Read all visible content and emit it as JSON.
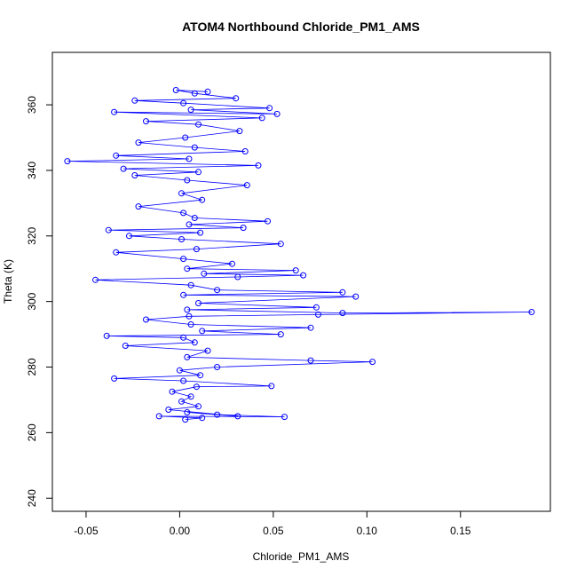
{
  "chart_data": {
    "type": "line",
    "title": "ATOM4 Northbound Chloride_PM1_AMS",
    "xlabel": "Chloride_PM1_AMS",
    "ylabel": "Theta (K)",
    "xlim": [
      -0.068,
      0.198
    ],
    "ylim": [
      236,
      376
    ],
    "x_ticks": [
      -0.05,
      0.0,
      0.05,
      0.1,
      0.15
    ],
    "x_tick_labels": [
      "-0.05",
      "0.00",
      "0.05",
      "0.10",
      "0.15"
    ],
    "y_ticks": [
      240,
      260,
      280,
      300,
      320,
      340,
      360
    ],
    "y_tick_labels": [
      "240",
      "260",
      "280",
      "300",
      "320",
      "340",
      "360"
    ],
    "grid": false,
    "marker": "open-circle",
    "color": "#0000ff",
    "series": [
      {
        "points": [
          [
            0.003,
            264.0
          ],
          [
            0.012,
            264.5
          ],
          [
            -0.011,
            265.0
          ],
          [
            0.056,
            264.8
          ],
          [
            0.02,
            265.5
          ],
          [
            0.004,
            266.2
          ],
          [
            0.031,
            265.0
          ],
          [
            -0.006,
            267.0
          ],
          [
            0.01,
            268.0
          ],
          [
            0.001,
            269.5
          ],
          [
            0.006,
            271.0
          ],
          [
            -0.004,
            272.5
          ],
          [
            0.009,
            274.0
          ],
          [
            0.049,
            274.2
          ],
          [
            0.002,
            275.8
          ],
          [
            -0.035,
            276.5
          ],
          [
            0.011,
            277.5
          ],
          [
            0.0,
            279.0
          ],
          [
            0.02,
            280.0
          ],
          [
            0.103,
            281.6
          ],
          [
            0.07,
            282.0
          ],
          [
            0.004,
            283.0
          ],
          [
            0.015,
            285.0
          ],
          [
            -0.029,
            286.5
          ],
          [
            0.008,
            287.5
          ],
          [
            0.002,
            289.0
          ],
          [
            -0.039,
            289.5
          ],
          [
            0.054,
            290.0
          ],
          [
            0.012,
            291.0
          ],
          [
            0.07,
            292.0
          ],
          [
            0.006,
            293.0
          ],
          [
            -0.018,
            294.5
          ],
          [
            0.005,
            295.5
          ],
          [
            0.074,
            296.0
          ],
          [
            0.188,
            296.8
          ],
          [
            0.087,
            296.5
          ],
          [
            0.004,
            297.5
          ],
          [
            0.073,
            298.2
          ],
          [
            0.01,
            299.5
          ],
          [
            0.094,
            301.5
          ],
          [
            0.002,
            302.0
          ],
          [
            0.087,
            302.8
          ],
          [
            0.02,
            303.5
          ],
          [
            0.006,
            305.0
          ],
          [
            -0.045,
            306.6
          ],
          [
            0.031,
            307.5
          ],
          [
            0.066,
            308.0
          ],
          [
            0.013,
            308.5
          ],
          [
            0.062,
            309.5
          ],
          [
            0.004,
            310.0
          ],
          [
            0.028,
            311.5
          ],
          [
            0.002,
            313.0
          ],
          [
            -0.034,
            315.0
          ],
          [
            0.009,
            316.0
          ],
          [
            0.054,
            317.6
          ],
          [
            0.001,
            319.0
          ],
          [
            -0.027,
            320.0
          ],
          [
            0.011,
            321.0
          ],
          [
            -0.038,
            321.8
          ],
          [
            0.034,
            322.5
          ],
          [
            0.005,
            323.5
          ],
          [
            0.047,
            324.5
          ],
          [
            0.008,
            325.5
          ],
          [
            0.002,
            327.0
          ],
          [
            -0.022,
            329.0
          ],
          [
            0.012,
            331.0
          ],
          [
            0.001,
            333.0
          ],
          [
            0.036,
            335.5
          ],
          [
            0.004,
            337.0
          ],
          [
            -0.024,
            338.5
          ],
          [
            0.01,
            339.5
          ],
          [
            -0.03,
            340.5
          ],
          [
            0.042,
            341.5
          ],
          [
            -0.06,
            342.8
          ],
          [
            0.005,
            343.5
          ],
          [
            -0.034,
            344.5
          ],
          [
            0.035,
            345.8
          ],
          [
            0.008,
            347.0
          ],
          [
            -0.022,
            348.5
          ],
          [
            0.003,
            350.0
          ],
          [
            0.032,
            352.0
          ],
          [
            0.01,
            354.0
          ],
          [
            -0.018,
            355.0
          ],
          [
            0.044,
            356.0
          ],
          [
            -0.035,
            357.8
          ],
          [
            0.052,
            357.2
          ],
          [
            0.006,
            358.5
          ],
          [
            0.048,
            359.0
          ],
          [
            0.002,
            360.5
          ],
          [
            -0.024,
            361.3
          ],
          [
            0.03,
            362.0
          ],
          [
            0.008,
            363.5
          ],
          [
            -0.002,
            364.5
          ],
          [
            0.015,
            364.0
          ]
        ]
      }
    ]
  }
}
